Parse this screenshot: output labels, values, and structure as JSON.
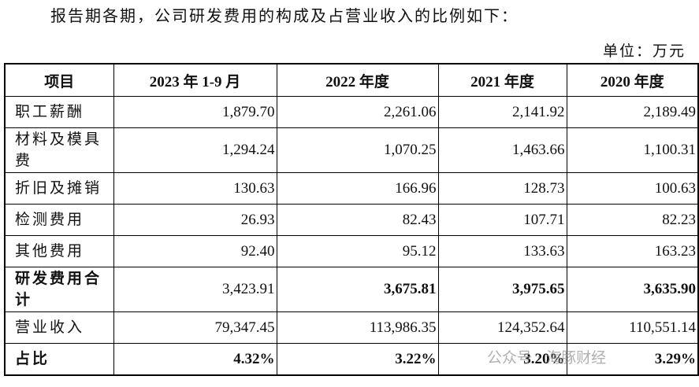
{
  "header": {
    "title": "报告期各期，公司研发费用的构成及占营业收入的比例如下：",
    "unit": "单位：万元"
  },
  "table": {
    "columns": [
      "项目",
      "2023 年 1-9 月",
      "2022 年度",
      "2021 年度",
      "2020 年度"
    ],
    "rows": [
      [
        "职工薪酬",
        "1,879.70",
        "2,261.06",
        "2,141.92",
        "2,189.49"
      ],
      [
        "材料及模具费",
        "1,294.24",
        "1,070.25",
        "1,463.66",
        "1,100.31"
      ],
      [
        "折旧及摊销",
        "130.63",
        "166.96",
        "128.73",
        "100.63"
      ],
      [
        "检测费用",
        "26.93",
        "82.43",
        "107.71",
        "82.23"
      ],
      [
        "其他费用",
        "92.40",
        "95.12",
        "133.63",
        "163.23"
      ],
      [
        "研发费用合计",
        "3,423.91",
        "3,675.81",
        "3,975.65",
        "3,635.90"
      ],
      [
        "营业收入",
        "79,347.45",
        "113,986.35",
        "124,352.64",
        "110,551.14"
      ],
      [
        "占比",
        "4.32%",
        "3.22%",
        "3.20%",
        "3.29%"
      ]
    ]
  },
  "watermark": "公众号 · 海豚财经"
}
